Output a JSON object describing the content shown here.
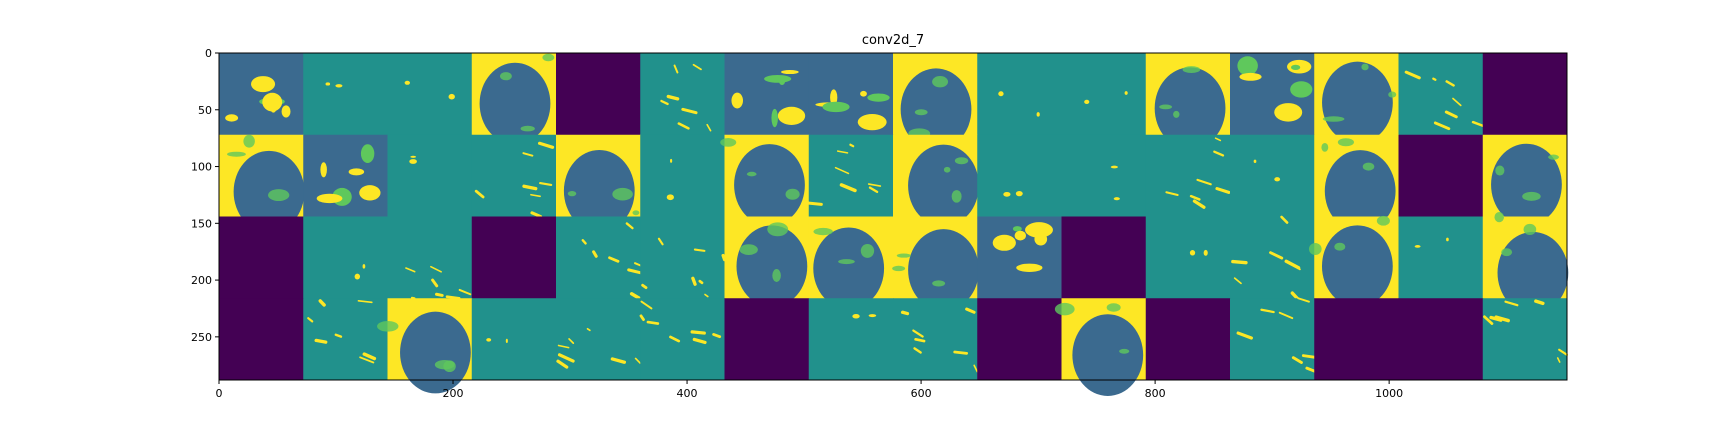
{
  "chart_data": {
    "type": "heatmap",
    "title": "conv2d_7",
    "xlabel": "",
    "ylabel": "",
    "xlim": [
      0,
      1152
    ],
    "ylim": [
      288,
      0
    ],
    "x_ticks": [
      0,
      200,
      400,
      600,
      800,
      1000
    ],
    "y_ticks": [
      0,
      50,
      100,
      150,
      200,
      250
    ],
    "grid": false,
    "colormap": "viridis",
    "colors": {
      "dead": "#440154",
      "teal": "#21918c",
      "blue": "#3b6a8f",
      "green": "#5fc85c",
      "yellow": "#fde725"
    },
    "grid_rows": 4,
    "grid_cols": 16,
    "tile_size_data": 72,
    "tiles": [
      [
        "blob",
        "flat",
        "flat",
        "bigdark",
        "dead",
        "spots",
        "blob",
        "blob",
        "bigdark",
        "flat",
        "flat",
        "bigdark",
        "blob",
        "bigdark",
        "lines",
        "dead"
      ],
      [
        "bigdark",
        "blob",
        "flat",
        "lines",
        "bigdark",
        "flat",
        "bigdark",
        "lines",
        "bigdark",
        "flat",
        "flat",
        "lines",
        "flat",
        "bigdark",
        "dead",
        "bigdark"
      ],
      [
        "dead",
        "flat",
        "lines",
        "dead",
        "lines",
        "lines",
        "bigdark",
        "bigdark",
        "bigdark",
        "blob",
        "dead",
        "flat",
        "lines",
        "bigdark",
        "flat",
        "bigdark"
      ],
      [
        "dead",
        "lines",
        "bigdark",
        "flat",
        "lines",
        "lines",
        "dead",
        "flat",
        "lines",
        "dead",
        "bigdark",
        "dead",
        "lines",
        "dead",
        "dead",
        "lines"
      ]
    ]
  }
}
